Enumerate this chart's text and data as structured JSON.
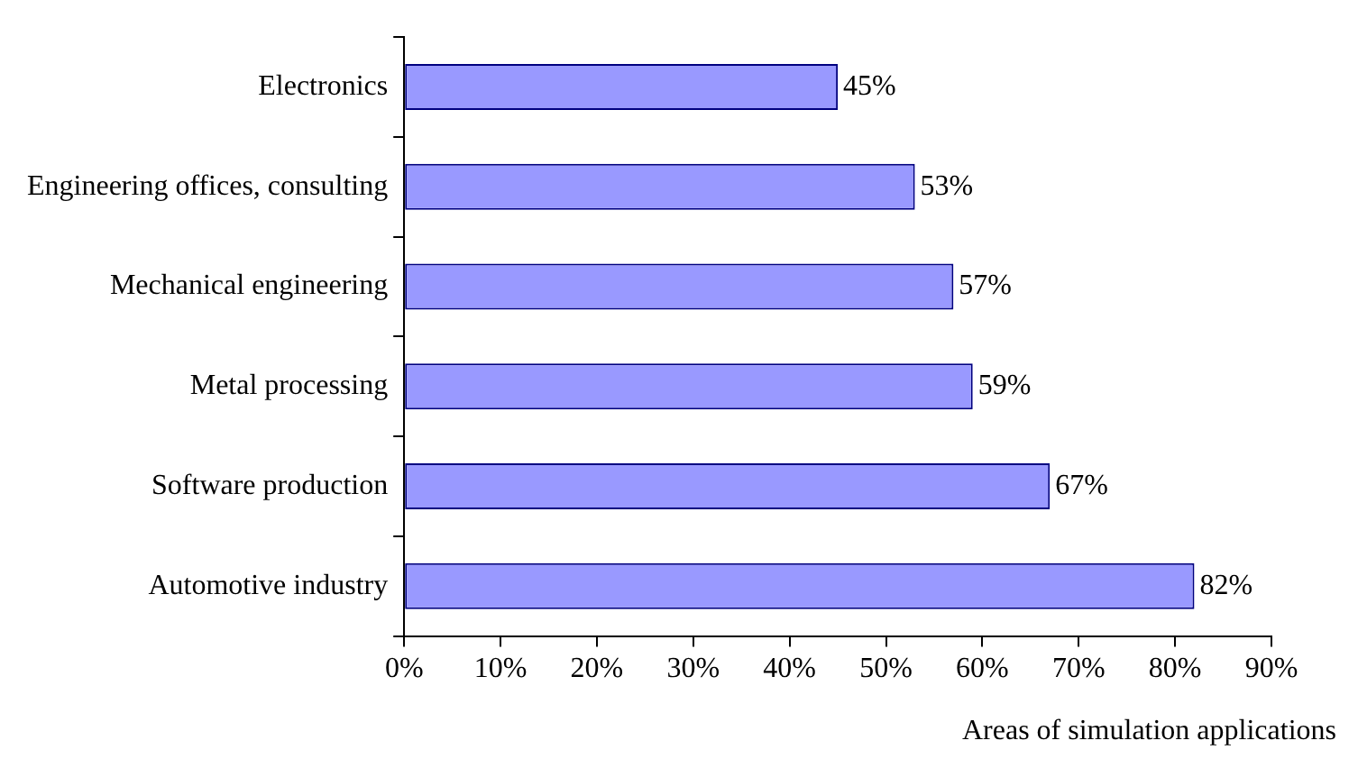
{
  "chart_data": {
    "type": "bar",
    "orientation": "horizontal",
    "xlabel": "Areas of simulation applications",
    "categories": [
      "Electronics",
      "Engineering offices, consulting",
      "Mechanical engineering",
      "Metal processing",
      "Software production",
      "Automotive industry"
    ],
    "values": [
      45,
      53,
      57,
      59,
      67,
      82
    ],
    "value_labels": [
      "45%",
      "53%",
      "57%",
      "59%",
      "67%",
      "82%"
    ],
    "color": "#9999ff",
    "xlim": [
      0,
      90
    ],
    "xticks": [
      {
        "value": 0,
        "label": "0%"
      },
      {
        "value": 10,
        "label": "10%"
      },
      {
        "value": 20,
        "label": "20%"
      },
      {
        "value": 30,
        "label": "30%"
      },
      {
        "value": 40,
        "label": "40%"
      },
      {
        "value": 50,
        "label": "50%"
      },
      {
        "value": 60,
        "label": "60%"
      },
      {
        "value": 70,
        "label": "70%"
      },
      {
        "value": 80,
        "label": "80%"
      },
      {
        "value": 90,
        "label": "90%"
      }
    ],
    "grid": false,
    "legend": false
  }
}
